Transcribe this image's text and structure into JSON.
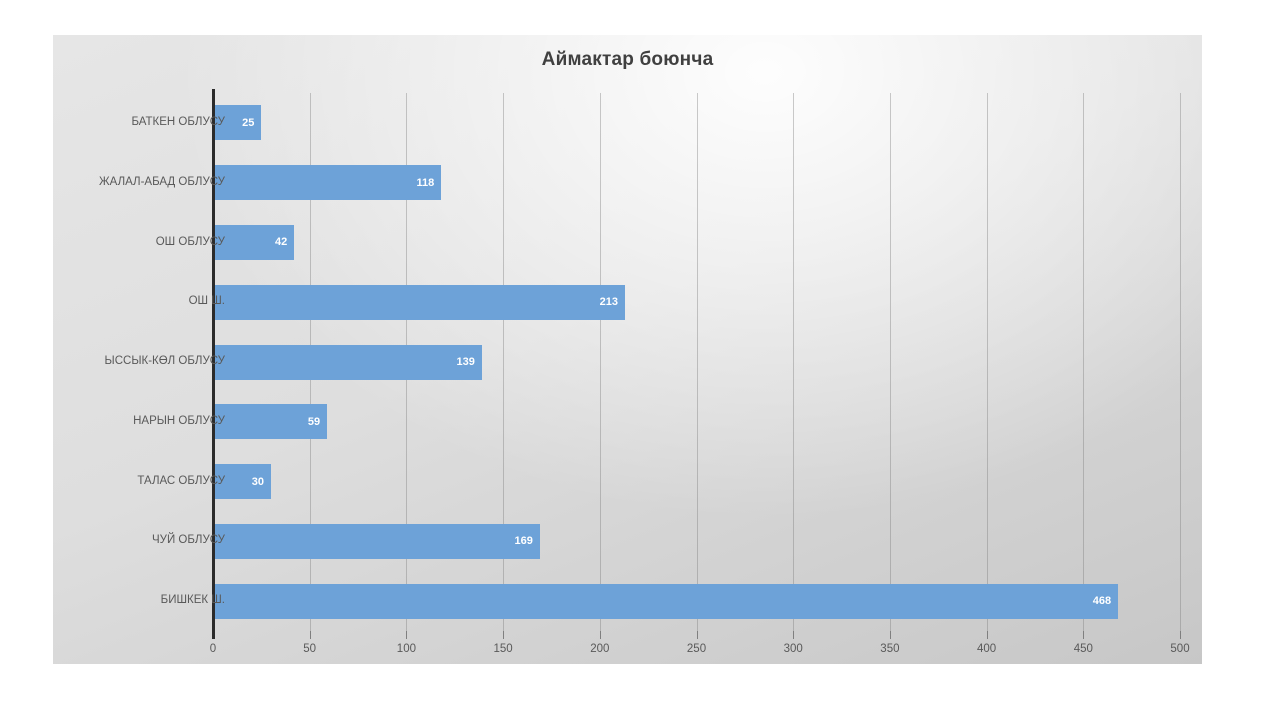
{
  "chart_data": {
    "type": "bar",
    "orientation": "horizontal",
    "title": "Аймактар боюнча",
    "categories": [
      "БАТКЕН ОБЛУСУ",
      "ЖАЛАЛ-АБАД ОБЛУСУ",
      "ОШ ОБЛУСУ",
      "ОШ Ш.",
      "ЫССЫК-КӨЛ ОБЛУСУ",
      "НАРЫН ОБЛУСУ",
      "ТАЛАС ОБЛУСУ",
      "ЧУЙ ОБЛУСУ",
      "БИШКЕК Ш."
    ],
    "values": [
      25,
      118,
      42,
      213,
      139,
      59,
      30,
      169,
      468
    ],
    "xlim": [
      0,
      500
    ],
    "xticks": [
      0,
      50,
      100,
      150,
      200,
      250,
      300,
      350,
      400,
      450,
      500
    ],
    "grid": "vertical-major",
    "legend": false,
    "value_labels": "inside-end"
  },
  "colors": {
    "bar": "#6da2d8",
    "value_label": "#ffffff",
    "axis_line": "#2b2b2b",
    "tick_label": "#595959",
    "title": "#404040"
  }
}
